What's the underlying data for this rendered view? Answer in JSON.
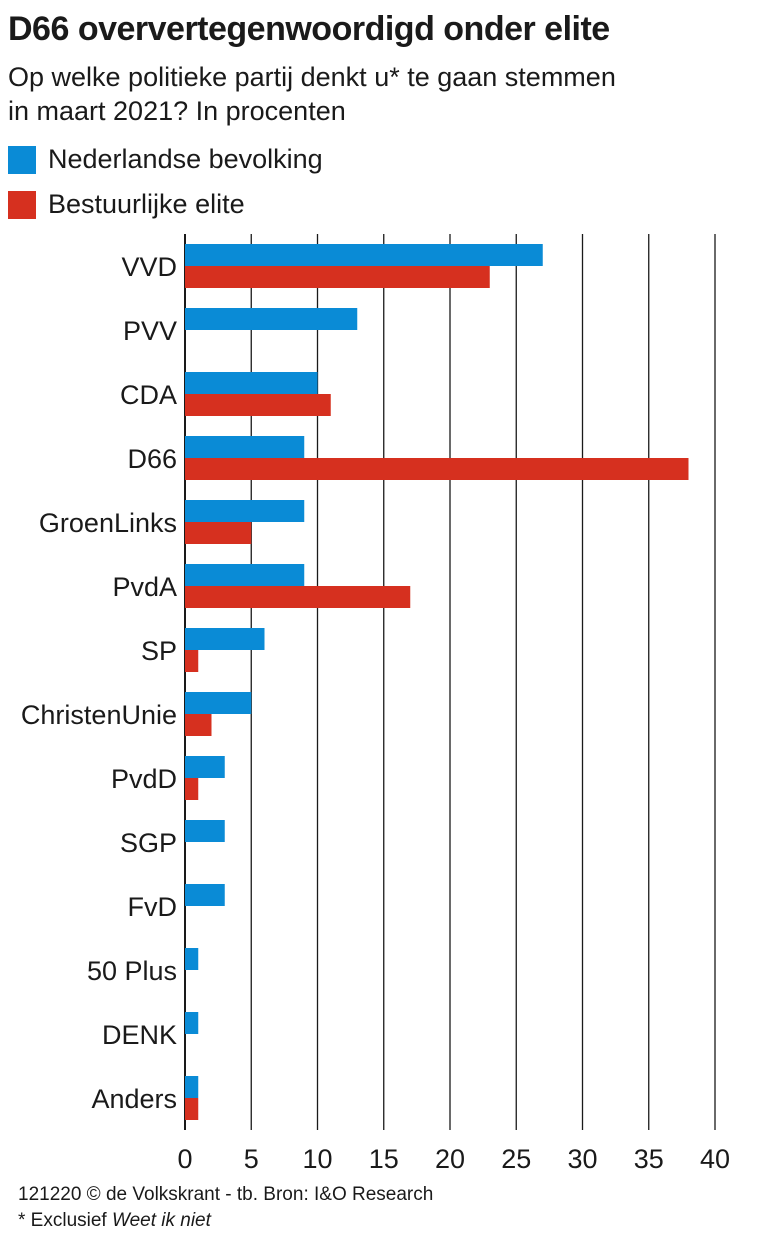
{
  "title": "D66 oververtegenwoordigd onder elite",
  "subtitle": "Op welke politieke partij denkt u* te gaan stemmen in maart 2021? In procenten",
  "colors": {
    "series1": "#0a8bd6",
    "series2": "#d6301f",
    "grid": "#1a1a1a",
    "text": "#1a1a1a"
  },
  "footer": {
    "credit": "121220 © de Volkskrant - tb. Bron: I&O Research",
    "note_prefix": "* Exclusief ",
    "note_emphasis": "Weet ik niet"
  },
  "chart_data": {
    "type": "bar",
    "orientation": "horizontal",
    "categories": [
      "VVD",
      "PVV",
      "CDA",
      "D66",
      "GroenLinks",
      "PvdA",
      "SP",
      "ChristenUnie",
      "PvdD",
      "SGP",
      "FvD",
      "50 Plus",
      "DENK",
      "Anders"
    ],
    "series": [
      {
        "name": "Nederlandse bevolking",
        "color": "#0a8bd6",
        "values": [
          27,
          13,
          10,
          9,
          9,
          9,
          6,
          5,
          3,
          3,
          3,
          1,
          1,
          1
        ]
      },
      {
        "name": "Bestuurlijke elite",
        "color": "#d6301f",
        "values": [
          23,
          0,
          11,
          38,
          5,
          17,
          1,
          2,
          1,
          0,
          0,
          0,
          0,
          1
        ]
      }
    ],
    "xlim": [
      0,
      40
    ],
    "xticks": [
      0,
      5,
      10,
      15,
      20,
      25,
      30,
      35,
      40
    ],
    "grid": "vertical",
    "legend": "top-left"
  }
}
